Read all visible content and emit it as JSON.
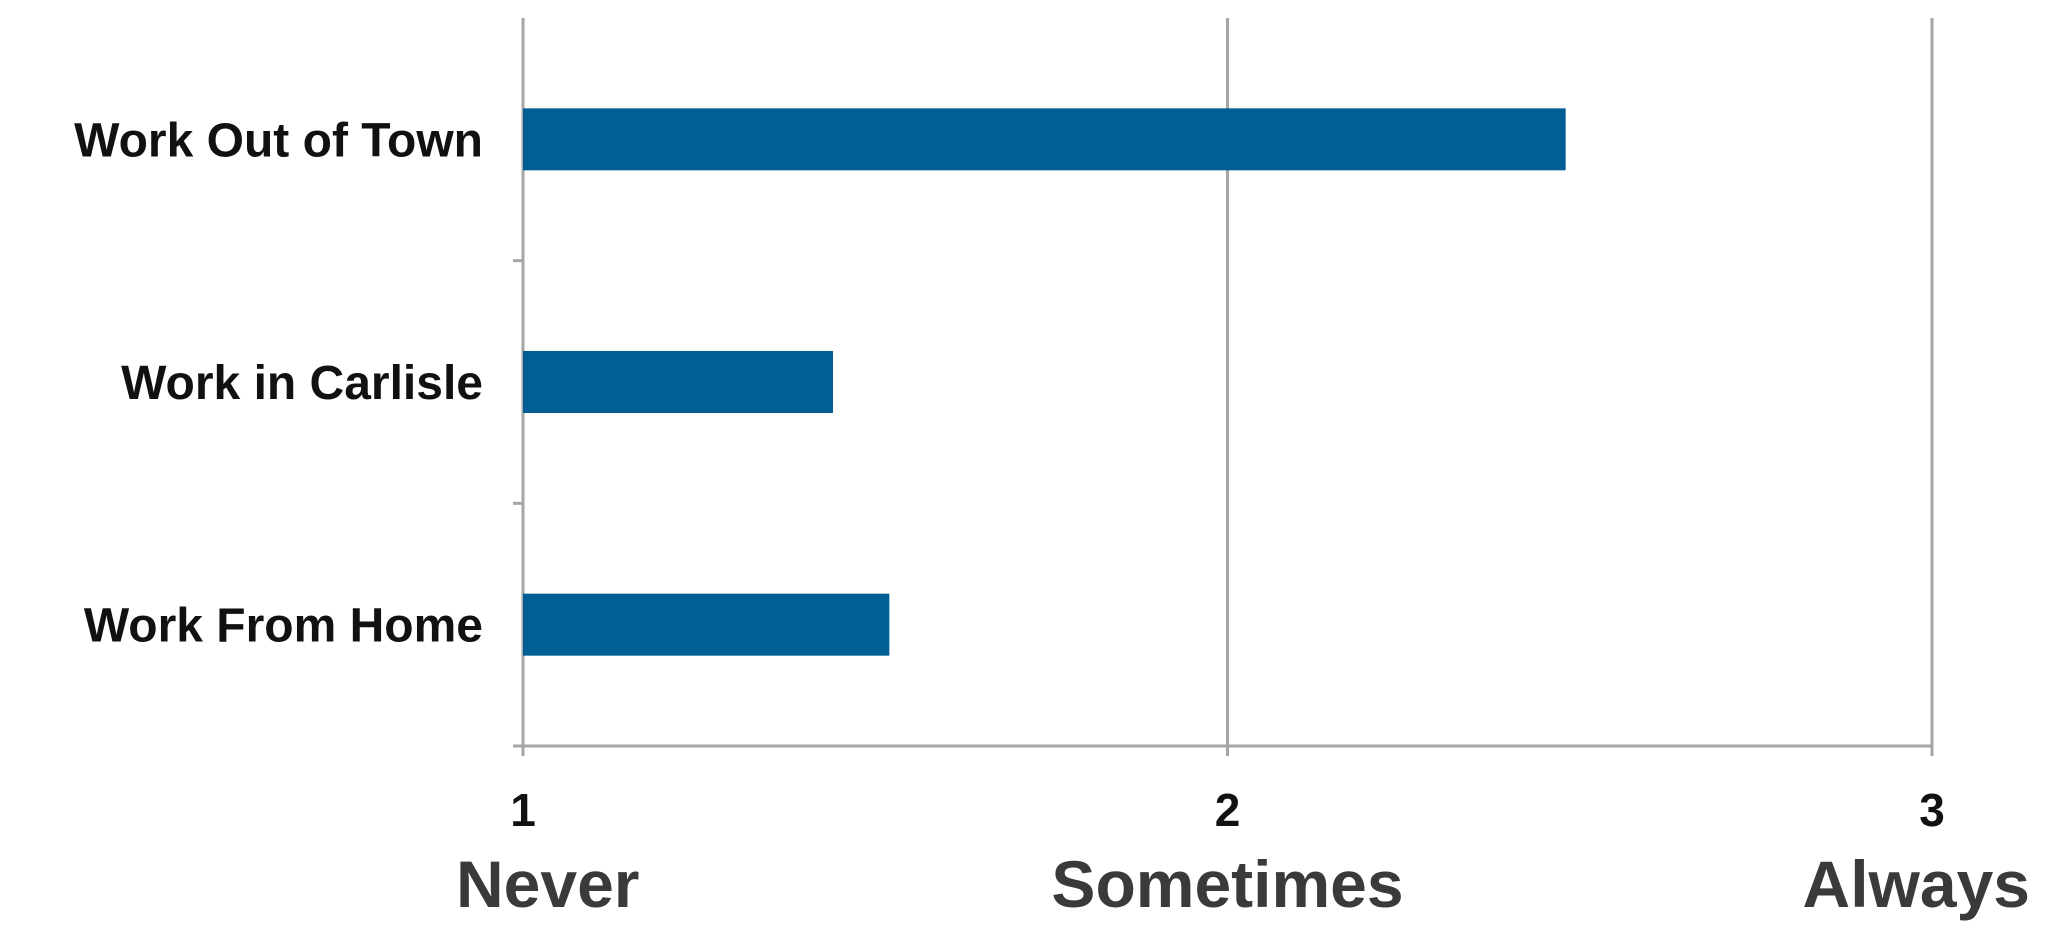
{
  "colors": {
    "bar": "#025f96",
    "grid": "#a6a6a6",
    "text": "#111111",
    "scale_text": "#3a3a3a"
  },
  "chart_data": {
    "type": "bar",
    "orientation": "horizontal",
    "categories": [
      "Work Out of Town",
      "Work in Carlisle",
      "Work From Home"
    ],
    "values": [
      2.48,
      1.44,
      1.52
    ],
    "xlim": [
      1,
      3
    ],
    "xticks": [
      1,
      2,
      3
    ],
    "xtick_labels": [
      "1",
      "2",
      "3"
    ],
    "scale_labels": [
      "Never",
      "Sometimes",
      "Always"
    ],
    "grid": true,
    "legend": "none",
    "title": "",
    "xlabel": "",
    "ylabel": ""
  }
}
